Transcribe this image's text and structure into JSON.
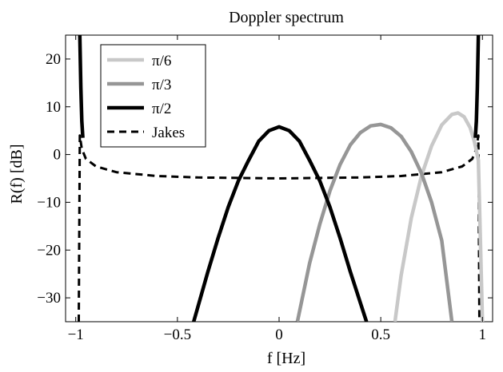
{
  "chart_data": {
    "type": "line",
    "title": "Doppler spectrum",
    "xlabel": "f [Hz]",
    "ylabel": "R(f) [dB]",
    "xlim": [
      -1.05,
      1.05
    ],
    "ylim": [
      -35,
      25
    ],
    "xticks": [
      -1,
      -0.5,
      0,
      0.5,
      1
    ],
    "xtick_labels": [
      "−1",
      "−0.5",
      "0",
      "0.5",
      "1"
    ],
    "yticks": [
      -30,
      -20,
      -10,
      0,
      10,
      20
    ],
    "ytick_labels": [
      "−30",
      "−20",
      "−10",
      "0",
      "10",
      "20"
    ],
    "grid": false,
    "legend_position": "top-left",
    "series": [
      {
        "name": "π/6",
        "color": "#c8c8c8",
        "style": "solid",
        "x": [
          0.57,
          0.6,
          0.65,
          0.7,
          0.75,
          0.8,
          0.85,
          0.88,
          0.91,
          0.94,
          0.96,
          0.98,
          1.0
        ],
        "y": [
          -35,
          -25.3,
          -13.3,
          -4.5,
          1.8,
          6.2,
          8.4,
          8.7,
          7.9,
          5.6,
          2.8,
          -1.2,
          -35
        ]
      },
      {
        "name": "π/3",
        "color": "#969696",
        "style": "solid",
        "x": [
          0.09,
          0.15,
          0.2,
          0.25,
          0.3,
          0.35,
          0.4,
          0.45,
          0.5,
          0.55,
          0.6,
          0.65,
          0.7,
          0.75,
          0.8,
          0.85
        ],
        "y": [
          -35,
          -22.8,
          -14.6,
          -7.6,
          -2.1,
          2.0,
          4.6,
          6.0,
          6.3,
          5.6,
          3.8,
          0.6,
          -3.9,
          -10.0,
          -18.0,
          -35
        ]
      },
      {
        "name": "π/2",
        "color": "#000000",
        "style": "solid",
        "x": [
          -0.42,
          -0.35,
          -0.3,
          -0.25,
          -0.2,
          -0.15,
          -0.1,
          -0.05,
          0,
          0.05,
          0.1,
          0.15,
          0.2,
          0.25,
          0.3,
          0.35,
          0.43
        ],
        "y": [
          -35,
          -24.5,
          -17.5,
          -11.0,
          -5.5,
          -1.2,
          2.8,
          5.0,
          5.8,
          5.0,
          2.8,
          -1.2,
          -5.5,
          -11.0,
          -17.5,
          -24.5,
          -35
        ]
      },
      {
        "name": "Jakes",
        "color": "#000000",
        "style": "dashed",
        "x": [
          -0.985,
          -0.98,
          -0.97,
          -0.95,
          -0.9,
          -0.8,
          -0.6,
          -0.4,
          -0.2,
          0,
          0.2,
          0.4,
          0.6,
          0.8,
          0.9,
          0.95,
          0.97,
          0.98,
          0.985
        ],
        "y": [
          -35,
          4.0,
          1.2,
          -0.9,
          -2.5,
          -3.7,
          -4.5,
          -4.8,
          -4.9,
          -5.0,
          -4.9,
          -4.8,
          -4.5,
          -3.7,
          -2.5,
          -0.9,
          1.2,
          4.0,
          -35
        ]
      },
      {
        "name": "",
        "color": "#000000",
        "style": "solid",
        "x": [
          -0.98,
          -0.975,
          -0.97,
          -0.965
        ],
        "y": [
          25,
          14,
          7,
          3.5
        ]
      },
      {
        "name": "",
        "color": "#000000",
        "style": "solid",
        "x": [
          0.965,
          0.97,
          0.975,
          0.98
        ],
        "y": [
          3.5,
          7,
          14,
          25
        ]
      }
    ]
  }
}
